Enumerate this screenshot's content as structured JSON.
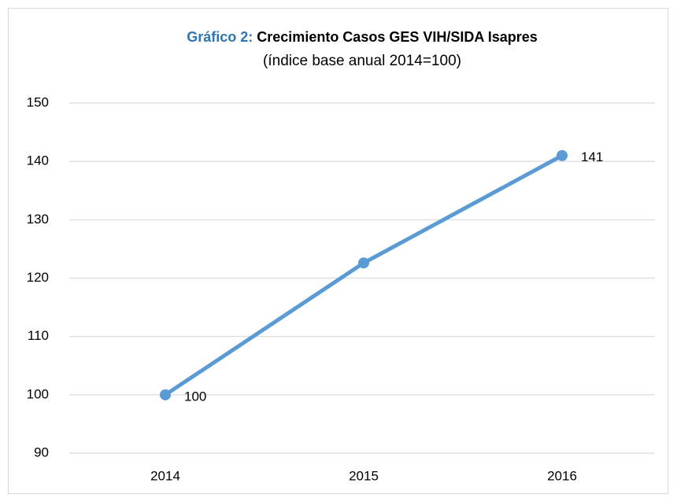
{
  "chart_data": {
    "type": "line",
    "title_prefix": "Gráfico 2:",
    "title": "Crecimiento Casos GES VIH/SIDA Isapres",
    "subtitle": "(índice base anual 2014=100)",
    "categories": [
      "2014",
      "2015",
      "2016"
    ],
    "series": [
      {
        "name": "Casos GES VIH/SIDA",
        "color": "#5b9bd5",
        "values": [
          100,
          122.6,
          141
        ],
        "value_labels": [
          "100",
          null,
          "141"
        ]
      }
    ],
    "ylim": [
      90,
      150
    ],
    "yticks": [
      90,
      100,
      110,
      120,
      130,
      140,
      150
    ],
    "grid": true,
    "title_prefix_color": "#2e75b6"
  }
}
